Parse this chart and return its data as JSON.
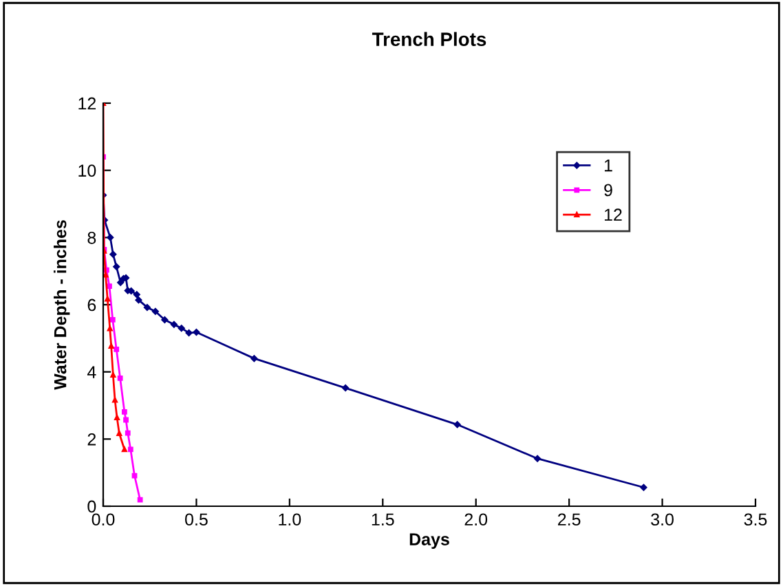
{
  "chart_data": {
    "type": "line",
    "title": "Trench Plots",
    "xlabel": "Days",
    "ylabel": "Water Depth - inches",
    "xlim": [
      0,
      3.5
    ],
    "xticks": [
      {
        "value": 0,
        "label": "0.0"
      },
      {
        "value": 0.5,
        "label": "0.5"
      },
      {
        "value": 1,
        "label": "1.0"
      },
      {
        "value": 1.5,
        "label": "1.5"
      },
      {
        "value": 2,
        "label": "2.0"
      },
      {
        "value": 2.5,
        "label": "2.5"
      },
      {
        "value": 3,
        "label": "3.0"
      },
      {
        "value": 3.5,
        "label": "3.5"
      }
    ],
    "ylim": [
      0,
      12
    ],
    "yticks": [
      0,
      2,
      4,
      6,
      8,
      10,
      12
    ],
    "grid": false,
    "legend": "top right",
    "series": [
      {
        "name": "1",
        "color": "#000080",
        "marker": "diamond",
        "x": [
          0,
          0.007,
          0.038,
          0.053,
          0.071,
          0.093,
          0.109,
          0.122,
          0.132,
          0.15,
          0.18,
          0.19,
          0.236,
          0.28,
          0.33,
          0.38,
          0.42,
          0.46,
          0.5,
          0.81,
          1.3,
          1.9,
          2.33,
          2.9
        ],
        "values": [
          9.26,
          8.52,
          8.0,
          7.5,
          7.13,
          6.66,
          6.78,
          6.8,
          6.42,
          6.41,
          6.3,
          6.14,
          5.92,
          5.8,
          5.55,
          5.41,
          5.3,
          5.16,
          5.18,
          4.4,
          3.52,
          2.43,
          1.42,
          0.56
        ]
      },
      {
        "name": "9",
        "color": "#ff00ff",
        "marker": "square",
        "x": [
          0,
          0.005,
          0.018,
          0.033,
          0.051,
          0.071,
          0.091,
          0.114,
          0.122,
          0.132,
          0.147,
          0.168,
          0.198
        ],
        "values": [
          10.4,
          7.64,
          7.03,
          6.55,
          5.55,
          4.67,
          3.81,
          2.81,
          2.57,
          2.18,
          1.69,
          0.91,
          0.19
        ]
      },
      {
        "name": "12",
        "color": "#ff0000",
        "marker": "triangle",
        "x": [
          0,
          0.004,
          0.013,
          0.023,
          0.036,
          0.043,
          0.053,
          0.063,
          0.074,
          0.086,
          0.114
        ],
        "values": [
          12,
          7.6,
          6.89,
          6.17,
          5.29,
          4.77,
          3.91,
          3.16,
          2.64,
          2.17,
          1.69
        ]
      }
    ]
  }
}
